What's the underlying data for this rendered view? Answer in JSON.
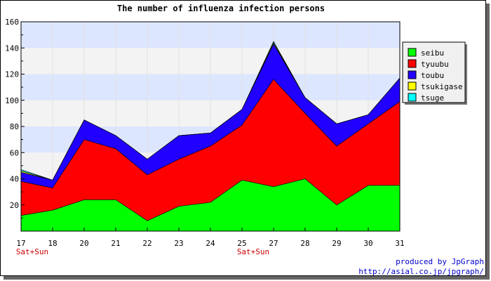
{
  "chart_data": {
    "type": "area",
    "stacked": true,
    "title": "The number of influenza infection persons",
    "x": [
      "17",
      "18",
      "20",
      "21",
      "22",
      "23",
      "24",
      "25",
      "27",
      "28",
      "29",
      "30",
      "31"
    ],
    "weekend_labels": [
      {
        "x": "17",
        "text": "Sat+Sun"
      },
      {
        "x": "25",
        "text": "Sat+Sun"
      }
    ],
    "ylim": [
      0,
      160
    ],
    "yticks": [
      20,
      40,
      60,
      80,
      100,
      120,
      140,
      160
    ],
    "series": [
      {
        "name": "seibu",
        "color": "#00ff00",
        "values": [
          12,
          16,
          24,
          24,
          8,
          19,
          22,
          39,
          34,
          40,
          20,
          35,
          35
        ]
      },
      {
        "name": "tyuubu",
        "color": "#ff0000",
        "values": [
          26,
          17,
          46,
          39,
          35,
          36,
          43,
          42,
          82,
          50,
          45,
          47,
          64
        ]
      },
      {
        "name": "toubu",
        "color": "#2200ff",
        "values": [
          7,
          6,
          15,
          10,
          12,
          18,
          10,
          12,
          27,
          12,
          17,
          7,
          18
        ]
      },
      {
        "name": "tsukigase",
        "color": "#ffff00",
        "values": [
          1,
          0,
          0,
          0,
          0,
          0,
          0,
          0,
          1,
          0,
          0,
          0,
          0
        ]
      },
      {
        "name": "tsuge",
        "color": "#00ffff",
        "values": [
          1,
          0,
          0,
          0,
          0,
          0,
          0,
          0,
          1,
          0,
          0,
          0,
          0
        ]
      }
    ],
    "legend_position": "right",
    "grid": true,
    "band_colors": [
      "#dde6ff",
      "#f3f3f3"
    ]
  },
  "credit": {
    "line1": "produced by JpGraph",
    "line2": "http://asial.co.jp/jpgraph/"
  }
}
